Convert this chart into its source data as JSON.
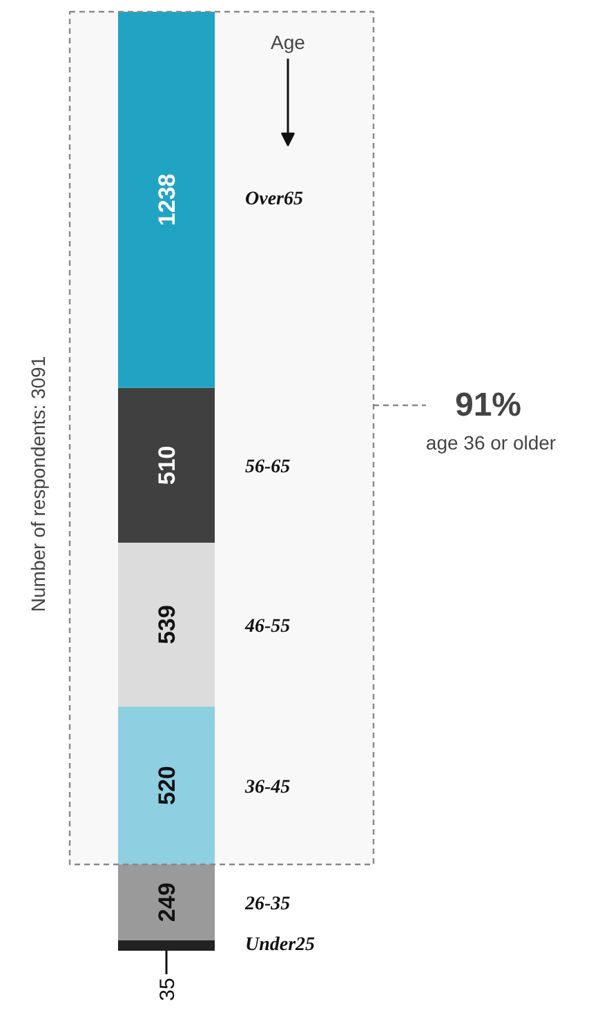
{
  "chart_data": {
    "type": "bar",
    "stacked": true,
    "data_labels": true,
    "categories": [
      null
    ],
    "series": [
      {
        "name": "Under25",
        "color": "#222222",
        "values": [
          35
        ]
      },
      {
        "name": "26-35",
        "color": "#9a9a9a",
        "values": [
          249
        ]
      },
      {
        "name": "36-45",
        "color": "#8fd4e8",
        "values": [
          520
        ]
      },
      {
        "name": "46-55",
        "color": "#e2e2e2",
        "values": [
          539
        ]
      },
      {
        "name": "56-65",
        "color": "#3c3c3c",
        "values": [
          510
        ]
      },
      {
        "name": "Over65",
        "color": "#1ba6c8",
        "values": [
          1238
        ]
      }
    ],
    "bands": [
      {
        "axis": "y",
        "from": 284,
        "to": 3091,
        "label": "91%",
        "color": "#888888"
      }
    ],
    "annotations": [
      "Age",
      "Number of respondents: 3091",
      "age 36 or older"
    ]
  }
}
